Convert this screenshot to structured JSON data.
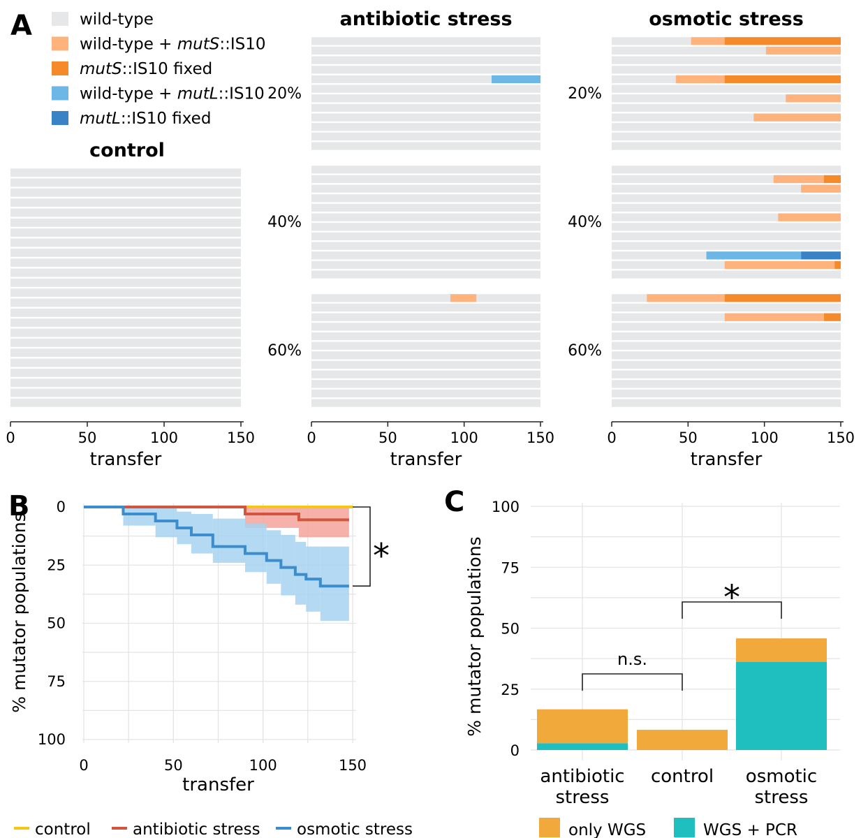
{
  "panel_labels": {
    "A": "A",
    "B": "B",
    "C": "C"
  },
  "colors": {
    "wildtype": "#e6e7e8",
    "wt_mutS": "#fdb37b",
    "mutS_fixed": "#f58a2a",
    "wt_mutL": "#6cb7e6",
    "mutL_fixed": "#3a82c6",
    "control_line": "#f5c518",
    "antibiotic_line": "#d2553d",
    "antibiotic_band": "#f4a39b",
    "osmotic_line": "#3b8dce",
    "osmotic_band": "#a6d3f0",
    "only_wgs": "#f2a93b",
    "wgs_pcr": "#1fbfbf",
    "grid": "#e4e4e4"
  },
  "panelA": {
    "legend": [
      {
        "key": "wildtype",
        "pre": "wild-type",
        "ital": "",
        "post": ""
      },
      {
        "key": "wt_mutS",
        "pre": "wild-type + ",
        "ital": "mutS",
        "post": "::IS10"
      },
      {
        "key": "mutS_fixed",
        "pre": "",
        "ital": "mutS",
        "post": "::IS10 fixed"
      },
      {
        "key": "wt_mutL",
        "pre": "wild-type + ",
        "ital": "mutL",
        "post": "::IS10"
      },
      {
        "key": "mutL_fixed",
        "pre": "",
        "ital": "mutL",
        "post": "::IS10 fixed"
      }
    ],
    "xlabel": "transfer",
    "xticks": [
      0,
      50,
      100,
      150
    ],
    "xlim": [
      0,
      150
    ],
    "group_labels": [
      "20%",
      "40%",
      "60%"
    ],
    "panels": [
      {
        "title": "control",
        "groups": 1,
        "rows_per_group": 24,
        "segments": []
      },
      {
        "title": "antibiotic stress",
        "groups": 3,
        "rows_per_group": 12,
        "segments": [
          {
            "group": 0,
            "row": 4,
            "start": 118,
            "end": 150,
            "type": "wt_mutL"
          },
          {
            "group": 2,
            "row": 0,
            "start": 91,
            "end": 108,
            "type": "wt_mutS"
          }
        ]
      },
      {
        "title": "osmotic stress",
        "groups": 3,
        "rows_per_group": 12,
        "segments": [
          {
            "group": 0,
            "row": 0,
            "start": 52,
            "end": 74,
            "type": "wt_mutS"
          },
          {
            "group": 0,
            "row": 0,
            "start": 74,
            "end": 150,
            "type": "mutS_fixed"
          },
          {
            "group": 0,
            "row": 1,
            "start": 101,
            "end": 150,
            "type": "wt_mutS"
          },
          {
            "group": 0,
            "row": 4,
            "start": 42,
            "end": 74,
            "type": "wt_mutS"
          },
          {
            "group": 0,
            "row": 4,
            "start": 74,
            "end": 150,
            "type": "mutS_fixed"
          },
          {
            "group": 0,
            "row": 6,
            "start": 114,
            "end": 150,
            "type": "wt_mutS"
          },
          {
            "group": 0,
            "row": 8,
            "start": 93,
            "end": 150,
            "type": "wt_mutS"
          },
          {
            "group": 1,
            "row": 1,
            "start": 106,
            "end": 139,
            "type": "wt_mutS"
          },
          {
            "group": 1,
            "row": 1,
            "start": 139,
            "end": 150,
            "type": "mutS_fixed"
          },
          {
            "group": 1,
            "row": 2,
            "start": 124,
            "end": 150,
            "type": "wt_mutS"
          },
          {
            "group": 1,
            "row": 5,
            "start": 109,
            "end": 150,
            "type": "wt_mutS"
          },
          {
            "group": 1,
            "row": 9,
            "start": 62,
            "end": 124,
            "type": "wt_mutL"
          },
          {
            "group": 1,
            "row": 9,
            "start": 124,
            "end": 150,
            "type": "mutL_fixed"
          },
          {
            "group": 1,
            "row": 10,
            "start": 74,
            "end": 146,
            "type": "wt_mutS"
          },
          {
            "group": 1,
            "row": 10,
            "start": 146,
            "end": 150,
            "type": "mutS_fixed"
          },
          {
            "group": 2,
            "row": 0,
            "start": 23,
            "end": 74,
            "type": "wt_mutS"
          },
          {
            "group": 2,
            "row": 0,
            "start": 74,
            "end": 150,
            "type": "mutS_fixed"
          },
          {
            "group": 2,
            "row": 2,
            "start": 74,
            "end": 139,
            "type": "wt_mutS"
          },
          {
            "group": 2,
            "row": 2,
            "start": 139,
            "end": 150,
            "type": "mutS_fixed"
          }
        ]
      }
    ]
  },
  "chart_data": [
    {
      "type": "line",
      "panel": "B",
      "xlabel": "transfer",
      "ylabel": "% mutator populations",
      "xlim": [
        0,
        150
      ],
      "ylim": [
        0,
        100
      ],
      "y_reversed": true,
      "xticks": [
        0,
        50,
        100,
        150
      ],
      "yticks": [
        0,
        25,
        50,
        75,
        100
      ],
      "legend_position": "bottom",
      "significance": "*",
      "series": [
        {
          "name": "control",
          "color_key": "control_line",
          "steps": [
            [
              0,
              0
            ],
            [
              150,
              0
            ]
          ],
          "band": [
            [
              90,
              0,
              0
            ],
            [
              150,
              0,
              2
            ]
          ]
        },
        {
          "name": "antibiotic stress",
          "color_key": "antibiotic_line",
          "band_key": "antibiotic_band",
          "steps": [
            [
              0,
              0
            ],
            [
              90,
              3
            ],
            [
              120,
              5.5
            ],
            [
              148,
              5.5
            ]
          ],
          "band": [
            [
              90,
              0,
              9
            ],
            [
              120,
              0,
              13
            ],
            [
              148,
              0,
              13
            ]
          ]
        },
        {
          "name": "osmotic stress",
          "color_key": "osmotic_line",
          "band_key": "osmotic_band",
          "steps": [
            [
              0,
              0
            ],
            [
              22,
              3
            ],
            [
              40,
              6
            ],
            [
              52,
              9
            ],
            [
              60,
              12
            ],
            [
              72,
              17
            ],
            [
              90,
              20
            ],
            [
              102,
              23
            ],
            [
              110,
              26
            ],
            [
              118,
              29
            ],
            [
              124,
              31
            ],
            [
              132,
              34
            ],
            [
              148,
              34
            ]
          ],
          "band": [
            [
              22,
              0,
              8
            ],
            [
              40,
              0,
              13
            ],
            [
              52,
              2,
              16
            ],
            [
              60,
              3,
              20
            ],
            [
              72,
              5,
              24
            ],
            [
              90,
              7,
              28
            ],
            [
              102,
              10,
              33
            ],
            [
              110,
              12,
              38
            ],
            [
              118,
              15,
              42
            ],
            [
              124,
              17,
              45
            ],
            [
              132,
              17,
              49
            ],
            [
              148,
              17,
              49
            ]
          ]
        }
      ]
    },
    {
      "type": "bar",
      "panel": "C",
      "stacked": true,
      "ylabel": "% mutator populations",
      "ylim": [
        0,
        100
      ],
      "yticks": [
        0,
        25,
        50,
        75,
        100
      ],
      "categories": [
        "antibiotic\nstress",
        "control",
        "osmotic\nstress"
      ],
      "series": [
        {
          "name": "WGS + PCR",
          "color_key": "wgs_pcr",
          "values": [
            2.8,
            0,
            36.1
          ]
        },
        {
          "name": "only WGS",
          "color_key": "only_wgs",
          "values": [
            13.9,
            8.3,
            9.7
          ]
        }
      ],
      "legend_order": [
        "only WGS",
        "WGS + PCR"
      ],
      "brackets": [
        {
          "from": 0,
          "to": 1,
          "label": "n.s."
        },
        {
          "from": 1,
          "to": 2,
          "label": "*"
        }
      ]
    }
  ]
}
